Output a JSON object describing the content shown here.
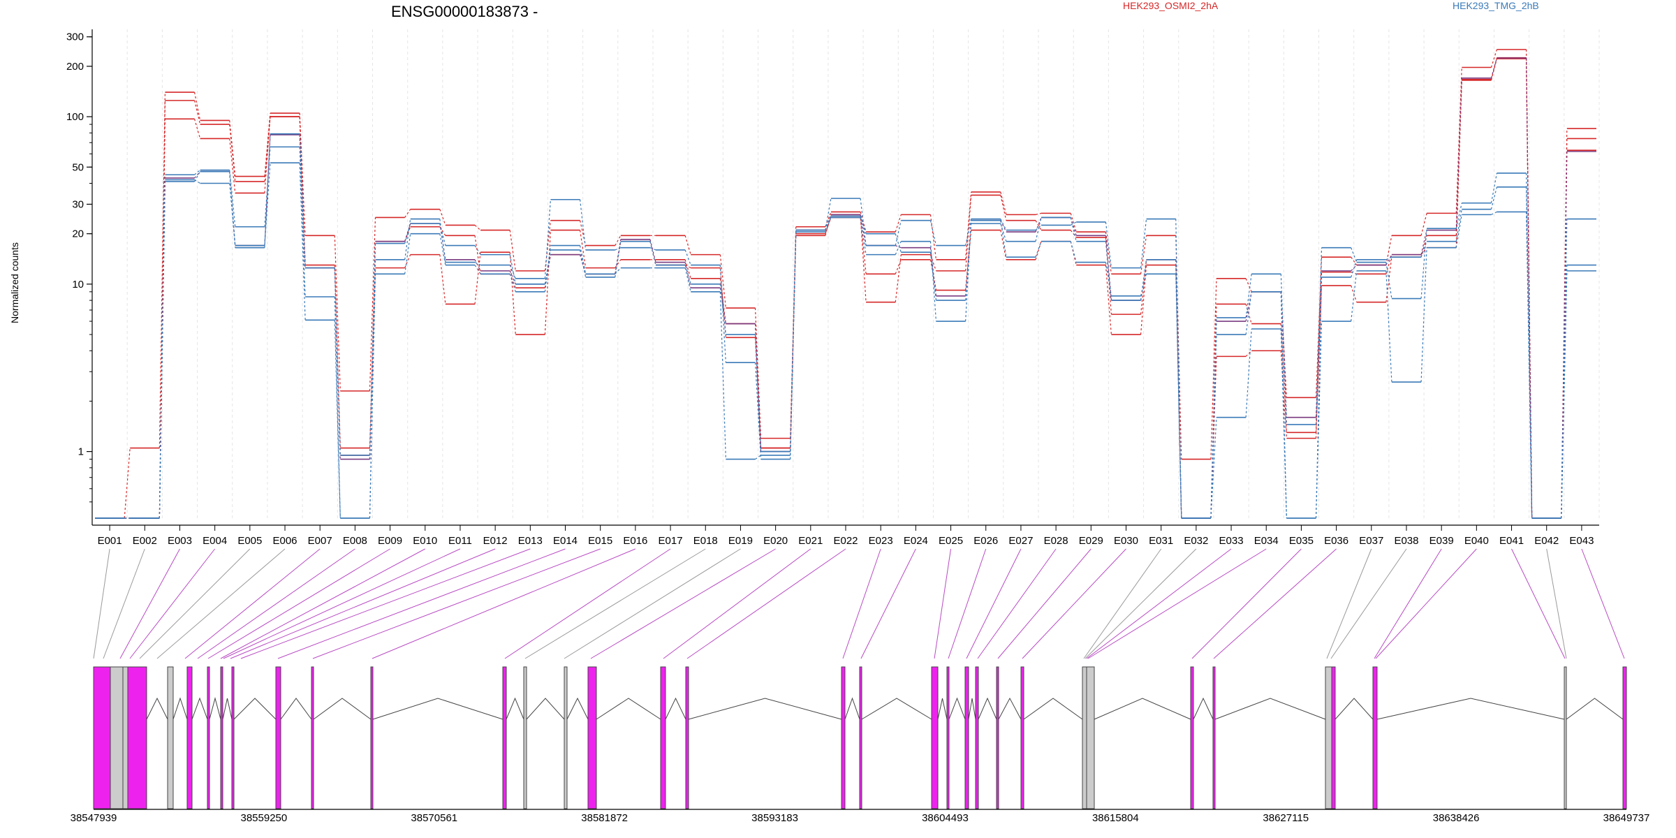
{
  "chart_data": {
    "type": "line",
    "title": "ENSG00000183873 -",
    "ylabel": "Normalized counts",
    "yscale": "log",
    "ylim": [
      0.4,
      320
    ],
    "yticks": [
      {
        "value": 1,
        "label": "1"
      },
      {
        "value": 10,
        "label": "10"
      },
      {
        "value": 20,
        "label": "20"
      },
      {
        "value": 30,
        "label": "30"
      },
      {
        "value": 50,
        "label": "50"
      },
      {
        "value": 100,
        "label": "100"
      },
      {
        "value": 200,
        "label": "200"
      },
      {
        "value": 300,
        "label": "300"
      }
    ],
    "categories": [
      "E001",
      "E002",
      "E003",
      "E004",
      "E005",
      "E006",
      "E007",
      "E008",
      "E009",
      "E010",
      "E011",
      "E012",
      "E013",
      "E014",
      "E015",
      "E016",
      "E017",
      "E018",
      "E019",
      "E020",
      "E021",
      "E022",
      "E023",
      "E024",
      "E025",
      "E026",
      "E027",
      "E028",
      "E029",
      "E030",
      "E031",
      "E032",
      "E033",
      "E034",
      "E035",
      "E036",
      "E037",
      "E038",
      "E039",
      "E040",
      "E041",
      "E042",
      "E043"
    ],
    "legend": [
      {
        "name": "HEK293_OSMI2_2hA",
        "color": "#d62728"
      },
      {
        "name": "HEK293_TMG_2hB",
        "color": "#3a7ab8"
      }
    ],
    "series": [
      {
        "group": "HEK293_OSMI2_2hA",
        "color": "#d62728",
        "values": [
          0.4,
          1.05,
          140,
          95,
          44,
          105,
          19.5,
          2.3,
          25,
          28,
          22.5,
          21,
          12,
          24,
          17,
          19.5,
          19.5,
          15,
          7.2,
          1.2,
          22,
          27,
          20.5,
          26,
          14,
          35.5,
          26,
          26.5,
          20.5,
          11.5,
          19.5,
          0.9,
          10.8,
          9,
          2.1,
          14.5,
          13,
          19.5,
          26.5,
          197,
          252,
          0.4,
          85
        ]
      },
      {
        "group": "HEK293_OSMI2_2hA",
        "color": "#d62728",
        "values": [
          0.4,
          0.4,
          125,
          90,
          41,
          100,
          13,
          1.05,
          12.5,
          15,
          7.6,
          15.5,
          5,
          21,
          12.5,
          14,
          14,
          10.8,
          5.8,
          1.05,
          19.5,
          26,
          7.8,
          15,
          12,
          34,
          24,
          21,
          19,
          6.6,
          14,
          0.4,
          7.6,
          5.8,
          1.3,
          9.8,
          7.8,
          14.5,
          19.5,
          165,
          222,
          0.4,
          63
        ]
      },
      {
        "group": "HEK293_OSMI2_2hA",
        "color": "#d62728",
        "values": [
          0.4,
          0.4,
          97,
          74,
          35,
          100,
          12.5,
          0.95,
          18,
          22,
          19.5,
          11.5,
          9.5,
          15,
          11.5,
          18,
          13,
          12.5,
          4.8,
          1.05,
          20,
          25,
          11.5,
          14,
          9.2,
          21,
          14,
          18,
          13,
          5,
          13,
          0.4,
          3.7,
          4,
          1.2,
          11.8,
          11.5,
          15,
          16.5,
          167,
          225,
          0.4,
          74
        ]
      },
      {
        "group": "HEK293_OSMI2_2hA",
        "color": "#7a3a80",
        "values": [
          0.4,
          0.4,
          43,
          47,
          17,
          78,
          12.5,
          0.9,
          18,
          23,
          14,
          12,
          10,
          15,
          11.5,
          18.5,
          13.5,
          9.5,
          5.8,
          1.0,
          21,
          26,
          17,
          16.5,
          8.5,
          24,
          20.5,
          25,
          19.5,
          8,
          14,
          0.4,
          6,
          9,
          1.6,
          12,
          13,
          15,
          21,
          170,
          224,
          0.4,
          62
        ]
      },
      {
        "group": "HEK293_TMG_2hB",
        "color": "#3a7ab8",
        "values": [
          0.4,
          0.4,
          45,
          48,
          22,
          66,
          8.4,
          0.4,
          14,
          24.5,
          13.5,
          13,
          10.8,
          32,
          16,
          16.5,
          16,
          13,
          3.4,
          0.9,
          21,
          32.5,
          17,
          24,
          17,
          24.5,
          21,
          22.5,
          23.5,
          12.5,
          24.5,
          0.4,
          6.3,
          11.5,
          1.45,
          16.5,
          13.5,
          8.2,
          21.5,
          30.5,
          46,
          0.4,
          24.5
        ]
      },
      {
        "group": "HEK293_TMG_2hB",
        "color": "#3a7ab8",
        "values": [
          0.4,
          0.4,
          42,
          40,
          17,
          53,
          6.1,
          0.4,
          11.5,
          20,
          13,
          11.5,
          9,
          17,
          11.5,
          12.5,
          12.5,
          9,
          0.9,
          0.95,
          20.5,
          25,
          15,
          18,
          6,
          24,
          14.5,
          18,
          13.5,
          8.5,
          11.5,
          0.4,
          1.6,
          5.4,
          0.4,
          6,
          12,
          2.6,
          16.5,
          26,
          27,
          0.4,
          12
        ]
      },
      {
        "group": "HEK293_TMG_2hB",
        "color": "#3a7ab8",
        "values": [
          0.4,
          0.4,
          41,
          47,
          16.5,
          79,
          12.5,
          0.95,
          17.5,
          23,
          17,
          15,
          10,
          16,
          11,
          18,
          13,
          10,
          5,
          1.0,
          21,
          25.5,
          20,
          15.5,
          8,
          23,
          18,
          25,
          18,
          8,
          14,
          0.4,
          5,
          9,
          0.4,
          11,
          14,
          14.5,
          18,
          28,
          38,
          0.4,
          13
        ]
      }
    ],
    "gene_axis": {
      "tick_labels": [
        "38547939",
        "38559250",
        "38570561",
        "38581872",
        "38593183",
        "38604493",
        "38615804",
        "38627115",
        "38638426",
        "38649737"
      ]
    }
  }
}
